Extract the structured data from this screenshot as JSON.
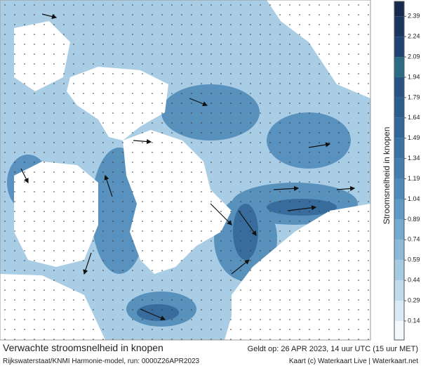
{
  "map": {
    "title": "Verwachte stroomsnelheid in knopen",
    "source": "Rijkswaterstaat/KNMI Harmonie-model, run: 0000Z26APR2023",
    "valid": "Geldt op: 26 APR 2023, 14 uur UTC (15 uur MET)",
    "credit": "Kaart (c) Waterkaart Live | Waterkaart.net"
  },
  "colorbar": {
    "label": "Stroomsnelheid in knopen",
    "lim": [
      0,
      2.5
    ],
    "ticks": [
      0.14,
      0.29,
      0.44,
      0.59,
      0.74,
      0.89,
      1.04,
      1.19,
      1.34,
      1.49,
      1.64,
      1.79,
      1.94,
      2.09,
      2.24,
      2.39
    ],
    "colors": [
      "#f2f8fc",
      "#d9eaf4",
      "#bfdbec",
      "#a5cbe3",
      "#8bbad9",
      "#74aad0",
      "#5f9ac5",
      "#4f8bba",
      "#437eaf",
      "#3972a4",
      "#316799",
      "#2b5d8e",
      "#275483",
      "#2a6c84",
      "#1f4270",
      "#1a3660",
      "#152a4c"
    ]
  }
}
